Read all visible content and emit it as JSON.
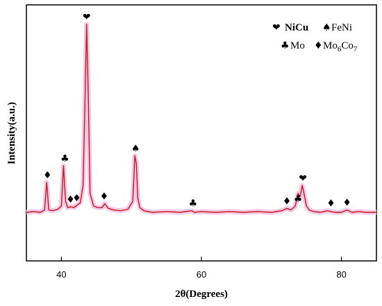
{
  "chart_data": {
    "type": "line",
    "xlabel": "2θ(Degrees)",
    "ylabel": "Intensity(a.u.)",
    "xlim": [
      35,
      85
    ],
    "xticks": [
      40,
      60,
      80
    ],
    "y_ticks_shown": false,
    "grid": false,
    "line_color": "#c8161b",
    "band_color": "#f2c9e6",
    "series": [
      {
        "x": [
          35,
          36,
          37,
          37.6,
          37.9,
          38.2,
          38.8,
          39.5,
          40.0,
          40.3,
          40.6,
          40.9,
          41.3,
          41.8,
          42.2,
          42.7,
          43.1,
          43.35,
          43.6,
          43.85,
          44.1,
          44.6,
          45.2,
          45.8,
          46.2,
          46.7,
          47.5,
          48.5,
          49.5,
          50.2,
          50.5,
          50.7,
          50.9,
          51.2,
          51.8,
          53,
          55,
          57,
          58.6,
          59,
          60,
          62,
          64,
          66,
          68,
          70,
          71.5,
          72.2,
          72.8,
          73.4,
          73.8,
          74.1,
          74.4,
          74.7,
          75.0,
          75.4,
          76,
          77,
          78,
          78.5,
          79,
          80,
          80.8,
          81.5,
          82.5,
          83.5,
          85
        ],
        "y": [
          6,
          7,
          6,
          9,
          44,
          9,
          8,
          10,
          14,
          65,
          20,
          12,
          13,
          12,
          15,
          18,
          40,
          140,
          245,
          150,
          30,
          14,
          12,
          12,
          17,
          11,
          9,
          8,
          10,
          20,
          78,
          68,
          25,
          12,
          8,
          6,
          7,
          6,
          8,
          6,
          7,
          6,
          7,
          6,
          7,
          6,
          8,
          11,
          9,
          14,
          30,
          26,
          40,
          28,
          14,
          9,
          7,
          6,
          8,
          7,
          6,
          6,
          9,
          6,
          7,
          6,
          6
        ]
      }
    ],
    "annotations": [
      {
        "symbol": "♦",
        "x": 38.0,
        "y": 44
      },
      {
        "symbol": "♣",
        "x": 40.5,
        "y": 65
      },
      {
        "symbol": "♦",
        "x": 41.3,
        "y": 13
      },
      {
        "symbol": "♦",
        "x": 42.2,
        "y": 15
      },
      {
        "symbol": "❤",
        "x": 43.6,
        "y": 245
      },
      {
        "symbol": "♦",
        "x": 46.1,
        "y": 17
      },
      {
        "symbol": "♠",
        "x": 50.6,
        "y": 78
      },
      {
        "symbol": "♣",
        "x": 58.8,
        "y": 8
      },
      {
        "symbol": "♦",
        "x": 72.2,
        "y": 11
      },
      {
        "symbol": "♣",
        "x": 73.8,
        "y": 14
      },
      {
        "symbol": "❤",
        "x": 74.5,
        "y": 40
      },
      {
        "symbol": "♦",
        "x": 78.5,
        "y": 8
      },
      {
        "symbol": "♦",
        "x": 80.8,
        "y": 9
      }
    ],
    "legend": {
      "placement": "top-right",
      "entries": [
        {
          "symbol": "❤",
          "label": "NiCu"
        },
        {
          "symbol": "♠",
          "label": "FeNi"
        },
        {
          "symbol": "♣",
          "label": "Mo"
        },
        {
          "symbol": "♦",
          "label": "Mo",
          "sub1": "6",
          "mid": "Co",
          "sub2": "7"
        }
      ]
    }
  }
}
